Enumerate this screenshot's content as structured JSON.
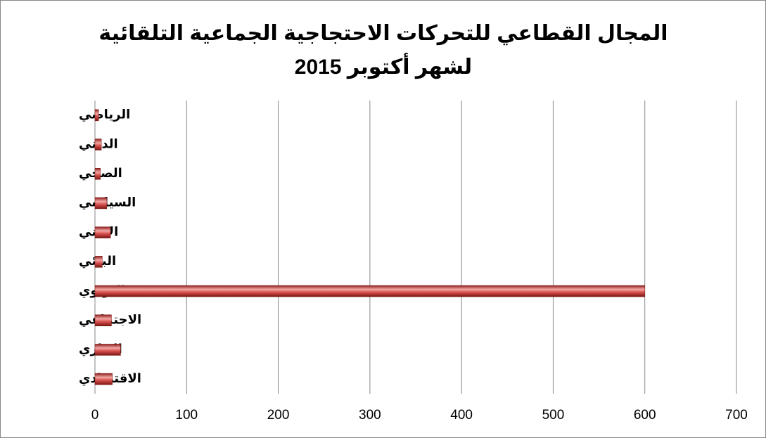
{
  "chart_data": {
    "type": "bar",
    "orientation": "horizontal",
    "title": "المجال القطاعي للتحركات الاحتجاجية الجماعية التلقائية لشهر أكتوبر 2015",
    "categories": [
      "الاقتصادي",
      "الاداري",
      "الاجتماعي",
      "التربوي",
      "البيئي",
      "الامني",
      "السياسي",
      "الصحي",
      "الديني",
      "الرياضي"
    ],
    "values": [
      19,
      28,
      18,
      600,
      8,
      17,
      13,
      6,
      7,
      4
    ],
    "color": "#c0504d",
    "xlim": [
      0,
      700
    ],
    "xticks": [
      0,
      100,
      200,
      300,
      400,
      500,
      600,
      700
    ],
    "grid": true
  }
}
